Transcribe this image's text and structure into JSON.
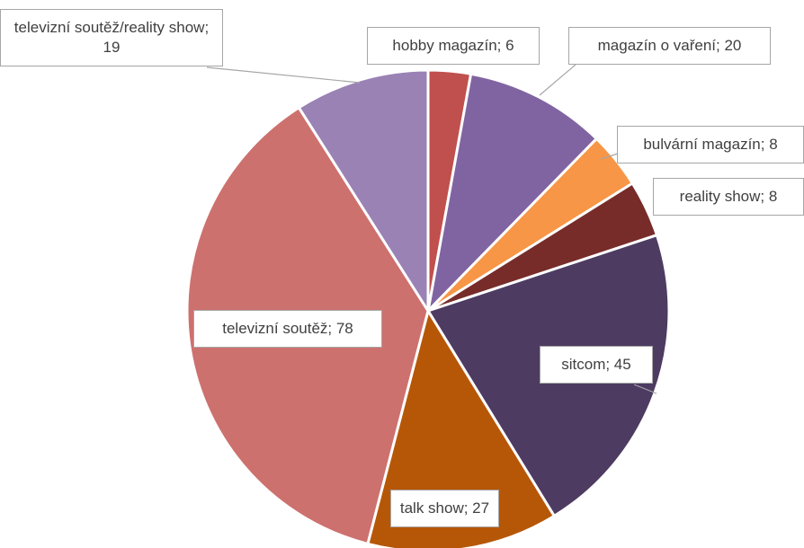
{
  "chart_data": {
    "type": "pie",
    "values": [
      6,
      20,
      8,
      8,
      45,
      27,
      78,
      19
    ],
    "value_labels": [
      "hobby magazín; 6",
      "magazín o vaření; 20",
      "bulvární magazín; 8",
      "reality show; 8",
      "sitcom; 45",
      "talk show; 27",
      "televizní soutěž; 78",
      "televizní soutěž/reality show; 19"
    ],
    "colors": [
      "#c0504d",
      "#8064a2",
      "#f79646",
      "#772c2a",
      "#4d3b62",
      "#b65708",
      "#cd716e",
      "#9a82b5"
    ]
  }
}
